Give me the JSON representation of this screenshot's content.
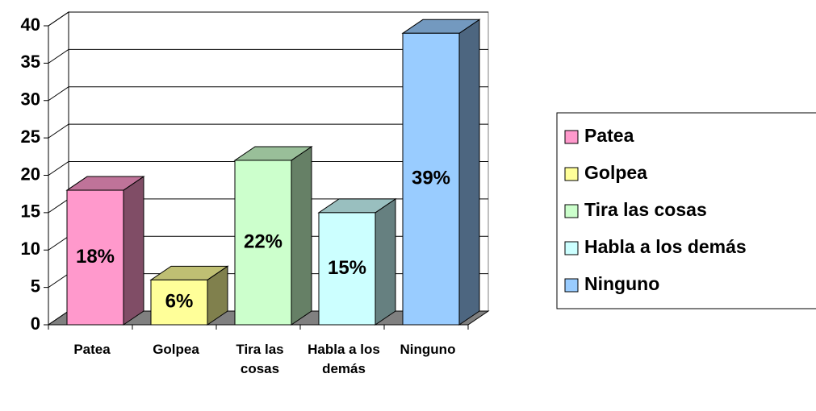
{
  "chart_data": {
    "type": "bar3d",
    "categories": [
      "Patea",
      "Golpea",
      "Tira las cosas",
      "Habla a los demás",
      "Ninguno"
    ],
    "values": [
      18,
      6,
      22,
      15,
      39
    ],
    "value_labels": [
      "18%",
      "6%",
      "22%",
      "15%",
      "39%"
    ],
    "colors": [
      "#ff99cc",
      "#ffff99",
      "#ccffcc",
      "#ccffff",
      "#99ccff"
    ],
    "ylim": [
      0,
      40
    ],
    "yticks": [
      0,
      5,
      10,
      15,
      20,
      25,
      30,
      35,
      40
    ],
    "grid": true,
    "legend": "right"
  }
}
